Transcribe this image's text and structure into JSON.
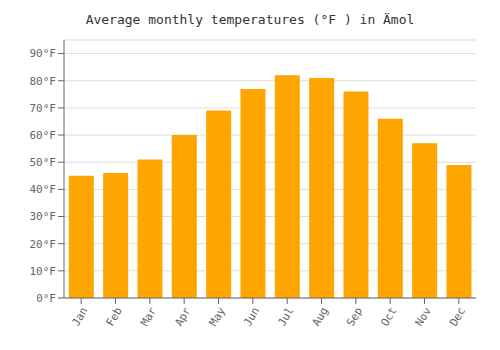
{
  "chart_data": {
    "type": "bar",
    "title": "Average monthly temperatures (°F ) in Ä­mol",
    "categories": [
      "Jan",
      "Feb",
      "Mar",
      "Apr",
      "May",
      "Jun",
      "Jul",
      "Aug",
      "Sep",
      "Oct",
      "Nov",
      "Dec"
    ],
    "values": [
      45,
      46,
      51,
      60,
      69,
      77,
      82,
      81,
      76,
      66,
      57,
      49
    ],
    "color": "#FFA500",
    "ylim": [
      0,
      95
    ],
    "yticks": [
      {
        "value": 0,
        "label": "0°F"
      },
      {
        "value": 10,
        "label": "10°F"
      },
      {
        "value": 20,
        "label": "20°F"
      },
      {
        "value": 30,
        "label": "30°F"
      },
      {
        "value": 40,
        "label": "40°F"
      },
      {
        "value": 50,
        "label": "50°F"
      },
      {
        "value": 60,
        "label": "60°F"
      },
      {
        "value": 70,
        "label": "70°F"
      },
      {
        "value": 80,
        "label": "80°F"
      },
      {
        "value": 90,
        "label": "90°F"
      }
    ],
    "grid": true
  }
}
